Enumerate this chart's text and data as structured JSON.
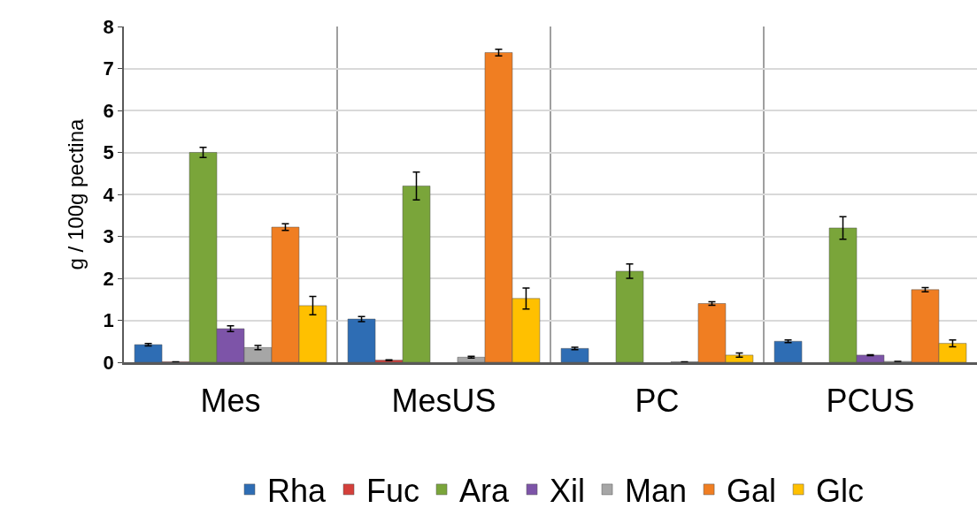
{
  "chart_data": {
    "type": "bar",
    "ylabel": "g / 100g pectina",
    "categories": [
      "Mes",
      "MesUS",
      "PC",
      "PCUS"
    ],
    "series": [
      {
        "name": "Rha",
        "color": "#2e6db4",
        "values": [
          0.42,
          1.03,
          0.33,
          0.5
        ],
        "errors": [
          0.03,
          0.06,
          0.03,
          0.03
        ]
      },
      {
        "name": "Fuc",
        "color": "#d43f3a",
        "values": [
          0.01,
          0.05,
          null,
          null
        ],
        "errors": [
          null,
          0.01,
          null,
          null
        ]
      },
      {
        "name": "Ara",
        "color": "#7aa53a",
        "values": [
          5.0,
          4.2,
          2.17,
          3.2
        ],
        "errors": [
          0.12,
          0.33,
          0.17,
          0.27
        ]
      },
      {
        "name": "Xil",
        "color": "#7d54a8",
        "values": [
          0.8,
          null,
          null,
          0.17
        ],
        "errors": [
          0.07,
          null,
          null,
          0.01
        ]
      },
      {
        "name": "Man",
        "color": "#a6a6a6",
        "values": [
          0.35,
          0.12,
          0.01,
          0.02
        ],
        "errors": [
          0.05,
          0.02,
          null,
          null
        ]
      },
      {
        "name": "Gal",
        "color": "#f07e22",
        "values": [
          3.22,
          7.38,
          1.4,
          1.73
        ],
        "errors": [
          0.08,
          0.08,
          0.04,
          0.05
        ]
      },
      {
        "name": "Glc",
        "color": "#ffc000",
        "values": [
          1.35,
          1.52,
          0.17,
          0.45
        ],
        "errors": [
          0.22,
          0.25,
          0.05,
          0.08
        ]
      }
    ],
    "ylim": [
      0,
      8
    ],
    "yticks": [
      0,
      1,
      2,
      3,
      4,
      5,
      6,
      7,
      8
    ],
    "grid": true,
    "legend": "bottom"
  }
}
